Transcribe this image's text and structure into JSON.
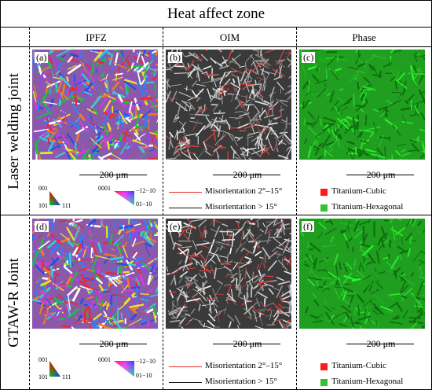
{
  "title": "Heat affect zone",
  "columns": [
    "IPFZ",
    "OIM",
    "Phase"
  ],
  "rows": [
    {
      "label": "Laser welding joint",
      "panels": [
        "(a)",
        "(b)",
        "(c)"
      ]
    },
    {
      "label": "GTAW-R Joint",
      "panels": [
        "(d)",
        "(e)",
        "(f)"
      ]
    }
  ],
  "scale_bar": "200 μm",
  "ipf_legend": {
    "cubic": {
      "top": "001",
      "bottom_left": "101",
      "bottom_right": "111"
    },
    "hex": {
      "top_left": "0001",
      "top_right": "−12−10",
      "bottom_right": "01−10"
    }
  },
  "oim_legend": [
    {
      "label": "Misorientation 2°–15°",
      "color": "#e53030"
    },
    {
      "label": "Misorientation > 15°",
      "color": "#111111"
    }
  ],
  "phase_legend": [
    {
      "label": "Titanium-Cubic",
      "color": "#ff1a1a"
    },
    {
      "label": "Titanium-Hexagonal",
      "color": "#33c233"
    }
  ]
}
